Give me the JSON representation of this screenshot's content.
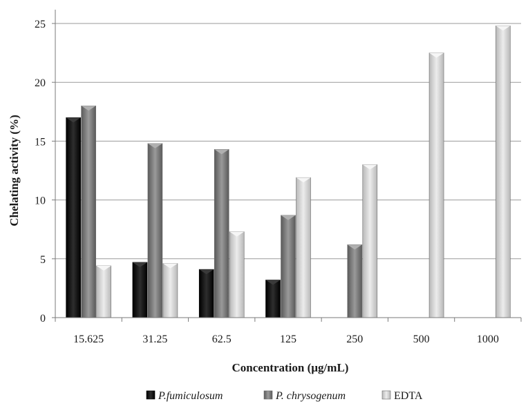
{
  "chart_data": {
    "type": "bar",
    "title": "",
    "xlabel": "Concentration (µg/mL)",
    "ylabel": "Chelating activity (%)",
    "categories": [
      "15.625",
      "31.25",
      "62.5",
      "125",
      "250",
      "500",
      "1000"
    ],
    "ylim": [
      0,
      25
    ],
    "yticks": [
      0,
      5,
      10,
      15,
      20,
      25
    ],
    "grid": true,
    "legend_position": "bottom",
    "series": [
      {
        "name": "P.fumiculosum",
        "color": "#151515",
        "italic": true,
        "values": [
          17,
          4.7,
          4.1,
          3.2,
          null,
          null,
          null
        ]
      },
      {
        "name": "P. chrysogenum",
        "color": "#7a7a7a",
        "italic": true,
        "values": [
          18,
          14.8,
          14.3,
          8.7,
          6.2,
          null,
          null
        ]
      },
      {
        "name": "EDTA",
        "color": "#d0d0d0",
        "italic": false,
        "values": [
          4.4,
          4.6,
          7.3,
          11.9,
          13,
          22.5,
          24.8
        ]
      }
    ]
  }
}
